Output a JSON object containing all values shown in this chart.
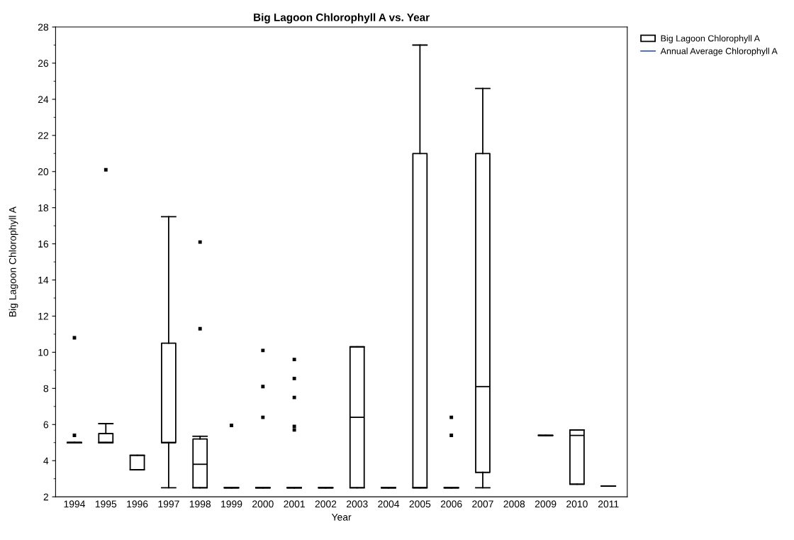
{
  "chart_data": {
    "type": "box",
    "title": "Big Lagoon Chlorophyll A vs. Year",
    "xlabel": "Year",
    "ylabel": "Big Lagoon Chlorophyll A",
    "categories": [
      "1994",
      "1995",
      "1996",
      "1997",
      "1998",
      "1999",
      "2000",
      "2001",
      "2002",
      "2003",
      "2004",
      "2005",
      "2006",
      "2007",
      "2008",
      "2009",
      "2010",
      "2011"
    ],
    "ylim": [
      2,
      28
    ],
    "yticks": [
      2,
      4,
      6,
      8,
      10,
      12,
      14,
      16,
      18,
      20,
      22,
      24,
      26,
      28
    ],
    "grid": false,
    "legend": "top right",
    "series": [
      {
        "name": "Big Lagoon Chlorophyll A",
        "color": "#000000",
        "boxes": [
          {
            "low": 5.0,
            "q1": 5.0,
            "median": 5.0,
            "q3": 5.0,
            "high": 5.0,
            "outliers": [
              5.4,
              10.8
            ]
          },
          {
            "low": 5.0,
            "q1": 5.0,
            "median": 5.0,
            "q3": 5.5,
            "high": 6.05,
            "outliers": [
              20.1
            ]
          },
          {
            "low": 3.5,
            "q1": 3.5,
            "median": 3.5,
            "q3": 4.3,
            "high": 4.3
          },
          {
            "low": 2.5,
            "q1": 5.0,
            "median": 5.0,
            "q3": 10.5,
            "high": 17.5
          },
          {
            "low": 2.5,
            "q1": 2.5,
            "median": 3.8,
            "q3": 5.2,
            "high": 5.35,
            "outliers": [
              11.3,
              16.1
            ]
          },
          {
            "low": 2.5,
            "q1": 2.5,
            "median": 2.5,
            "q3": 2.5,
            "high": 2.5,
            "outliers": [
              5.95
            ]
          },
          {
            "low": 2.5,
            "q1": 2.5,
            "median": 2.5,
            "q3": 2.5,
            "high": 2.5,
            "outliers": [
              6.4,
              8.1,
              10.1
            ]
          },
          {
            "low": 2.5,
            "q1": 2.5,
            "median": 2.5,
            "q3": 2.5,
            "high": 2.5,
            "outliers": [
              5.7,
              5.9,
              7.5,
              8.55,
              9.6
            ]
          },
          {
            "low": 2.5,
            "q1": 2.5,
            "median": 2.5,
            "q3": 2.5,
            "high": 2.5
          },
          {
            "low": 2.5,
            "q1": 2.5,
            "median": 6.4,
            "q3": 10.3,
            "high": 10.3
          },
          {
            "low": 2.5,
            "q1": 2.5,
            "median": 2.5,
            "q3": 2.5,
            "high": 2.5
          },
          {
            "low": 2.5,
            "q1": 2.5,
            "median": 2.5,
            "q3": 21.0,
            "high": 27.0
          },
          {
            "low": 2.5,
            "q1": 2.5,
            "median": 2.5,
            "q3": 2.5,
            "high": 2.5,
            "outliers": [
              5.4,
              6.4
            ]
          },
          {
            "low": 2.5,
            "q1": 3.35,
            "median": 8.1,
            "q3": 21.0,
            "high": 24.6
          },
          null,
          {
            "low": 5.4,
            "q1": 5.4,
            "median": 5.4,
            "q3": 5.4,
            "high": 5.4
          },
          {
            "low": 2.7,
            "q1": 2.7,
            "median": 5.4,
            "q3": 5.7,
            "high": 5.7
          },
          {
            "low": 2.6,
            "q1": 2.6,
            "median": 2.6,
            "q3": 2.6,
            "high": 2.6
          }
        ]
      },
      {
        "name": "Annual Average Chlorophyll A",
        "type": "line",
        "color": "#4060c0",
        "values": [
          null,
          null,
          null,
          null,
          null,
          null,
          null,
          null,
          null,
          null,
          null,
          null,
          null,
          null,
          null,
          null,
          null,
          null
        ]
      }
    ]
  }
}
